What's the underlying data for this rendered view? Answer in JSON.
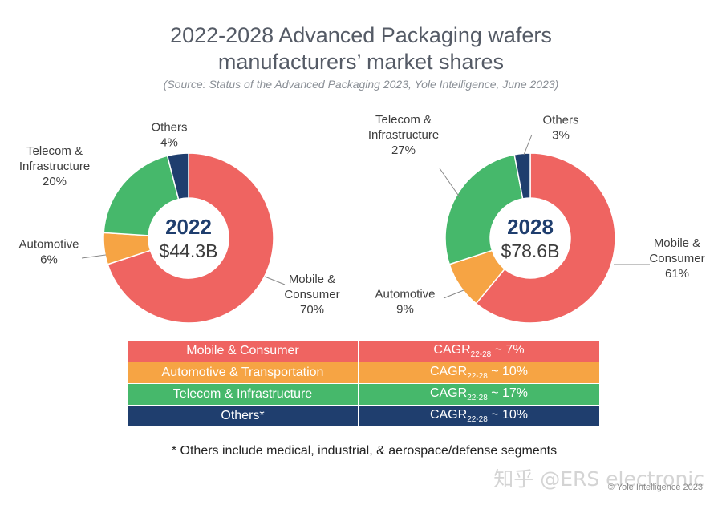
{
  "title_line1": "2022-2028 Advanced Packaging wafers",
  "title_line2": "manufacturers’ market shares",
  "subtitle": "(Source: Status of the Advanced Packaging 2023, Yole Intelligence, June 2023)",
  "colors": {
    "mobile": "#ef6461",
    "automotive": "#f6a444",
    "telecom": "#46b86b",
    "others": "#1f3e6e",
    "center_year": "#1f3e6e"
  },
  "chart_data": [
    {
      "type": "pie",
      "year": "2022",
      "total": "$44.3B",
      "slices": [
        {
          "label_lines": [
            "Mobile &",
            "Consumer"
          ],
          "value": 70,
          "pct": "70%",
          "color_key": "mobile"
        },
        {
          "label_lines": [
            "Automotive"
          ],
          "value": 6,
          "pct": "6%",
          "color_key": "automotive"
        },
        {
          "label_lines": [
            "Telecom &",
            "Infrastructure"
          ],
          "value": 20,
          "pct": "20%",
          "color_key": "telecom"
        },
        {
          "label_lines": [
            "Others"
          ],
          "value": 4,
          "pct": "4%",
          "color_key": "others"
        }
      ]
    },
    {
      "type": "pie",
      "year": "2028",
      "total": "$78.6B",
      "slices": [
        {
          "label_lines": [
            "Mobile &",
            "Consumer"
          ],
          "value": 61,
          "pct": "61%",
          "color_key": "mobile"
        },
        {
          "label_lines": [
            "Automotive"
          ],
          "value": 9,
          "pct": "9%",
          "color_key": "automotive"
        },
        {
          "label_lines": [
            "Telecom &",
            "Infrastructure"
          ],
          "value": 27,
          "pct": "27%",
          "color_key": "telecom"
        },
        {
          "label_lines": [
            "Others"
          ],
          "value": 3,
          "pct": "3%",
          "color_key": "others"
        }
      ]
    }
  ],
  "cagr_table": {
    "cagr_prefix": "CAGR",
    "cagr_sub": "22-28",
    "rows": [
      {
        "segment": "Mobile & Consumer",
        "cagr": "~ 7%",
        "color_key": "mobile"
      },
      {
        "segment": "Automotive & Transportation",
        "cagr": "~ 10%",
        "color_key": "automotive"
      },
      {
        "segment": "Telecom & Infrastructure",
        "cagr": "~ 17%",
        "color_key": "telecom"
      },
      {
        "segment": "Others*",
        "cagr": "~ 10%",
        "color_key": "others"
      }
    ]
  },
  "footnote": "* Others include medical, industrial, & aerospace/defense segments",
  "watermark": "知乎 @ERS electronic",
  "copyright": "© Yole Intelligence 2023"
}
